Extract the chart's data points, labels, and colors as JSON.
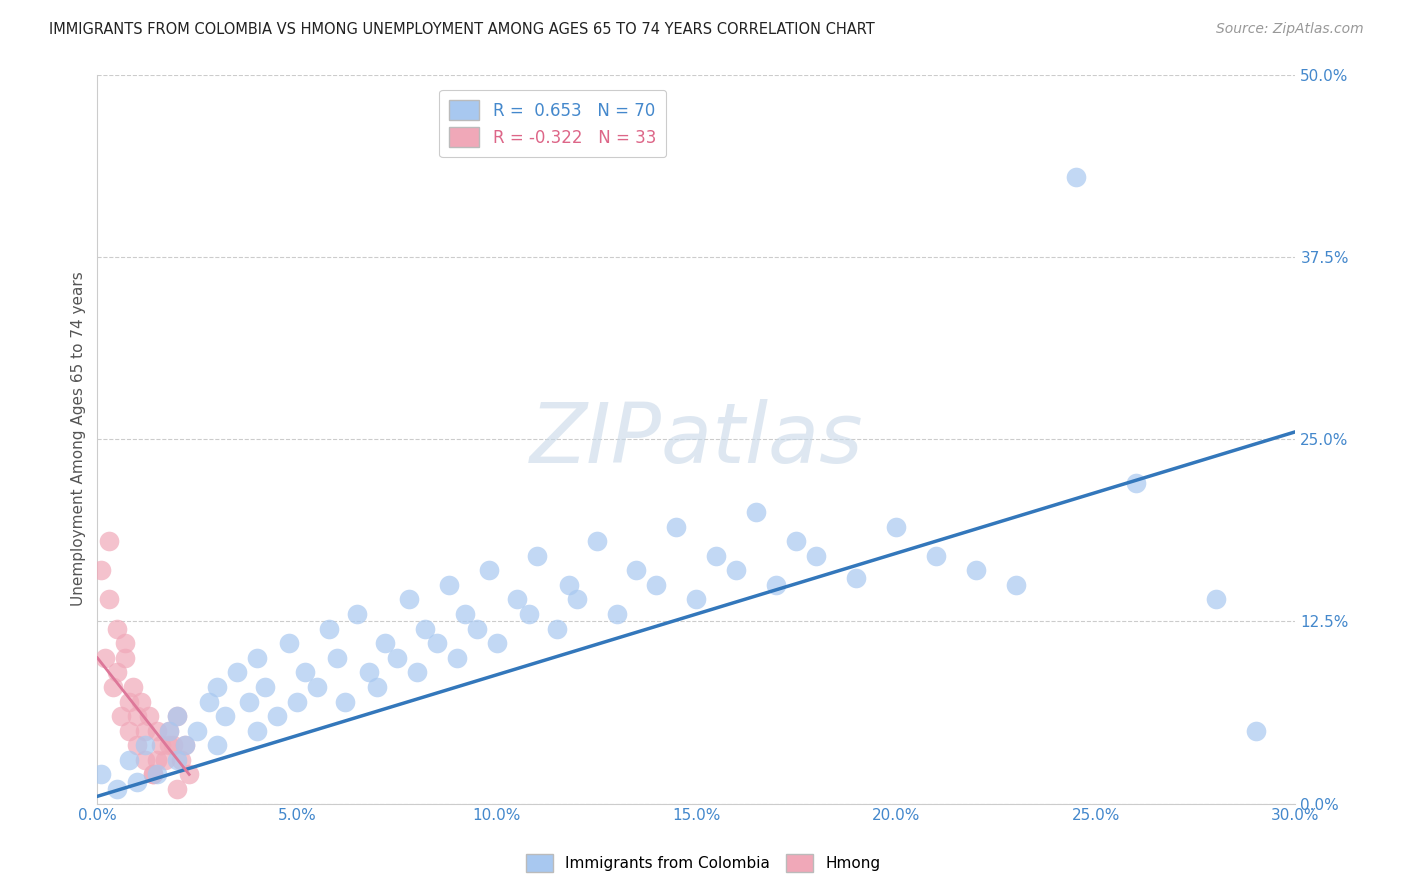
{
  "title": "IMMIGRANTS FROM COLOMBIA VS HMONG UNEMPLOYMENT AMONG AGES 65 TO 74 YEARS CORRELATION CHART",
  "source": "Source: ZipAtlas.com",
  "ylabel": "Unemployment Among Ages 65 to 74 years",
  "xlim": [
    0.0,
    0.3
  ],
  "ylim": [
    0.0,
    0.5
  ],
  "xticks": [
    0.0,
    0.05,
    0.1,
    0.15,
    0.2,
    0.25,
    0.3
  ],
  "yticks": [
    0.0,
    0.125,
    0.25,
    0.375,
    0.5
  ],
  "ytick_labels": [
    "0.0%",
    "12.5%",
    "25.0%",
    "37.5%",
    "50.0%"
  ],
  "xtick_labels": [
    "0.0%",
    "5.0%",
    "10.0%",
    "15.0%",
    "20.0%",
    "25.0%",
    "30.0%"
  ],
  "blue_R": 0.653,
  "blue_N": 70,
  "pink_R": -0.322,
  "pink_N": 33,
  "blue_color": "#a8c8f0",
  "pink_color": "#f0a8b8",
  "blue_line_color": "#3377bb",
  "pink_line_color": "#dd7799",
  "grid_color": "#cccccc",
  "background_color": "#ffffff",
  "watermark": "ZIPatlas",
  "watermark_color": "#c8d8e8",
  "legend_label_blue": "Immigrants from Colombia",
  "legend_label_pink": "Hmong",
  "blue_scatter_x": [
    0.001,
    0.005,
    0.008,
    0.01,
    0.012,
    0.015,
    0.018,
    0.02,
    0.02,
    0.022,
    0.025,
    0.028,
    0.03,
    0.03,
    0.032,
    0.035,
    0.038,
    0.04,
    0.04,
    0.042,
    0.045,
    0.048,
    0.05,
    0.052,
    0.055,
    0.058,
    0.06,
    0.062,
    0.065,
    0.068,
    0.07,
    0.072,
    0.075,
    0.078,
    0.08,
    0.082,
    0.085,
    0.088,
    0.09,
    0.092,
    0.095,
    0.098,
    0.1,
    0.105,
    0.108,
    0.11,
    0.115,
    0.118,
    0.12,
    0.125,
    0.13,
    0.135,
    0.14,
    0.145,
    0.15,
    0.155,
    0.16,
    0.165,
    0.17,
    0.175,
    0.18,
    0.19,
    0.2,
    0.21,
    0.22,
    0.23,
    0.245,
    0.26,
    0.28,
    0.29
  ],
  "blue_scatter_y": [
    0.02,
    0.01,
    0.03,
    0.015,
    0.04,
    0.02,
    0.05,
    0.03,
    0.06,
    0.04,
    0.05,
    0.07,
    0.04,
    0.08,
    0.06,
    0.09,
    0.07,
    0.05,
    0.1,
    0.08,
    0.06,
    0.11,
    0.07,
    0.09,
    0.08,
    0.12,
    0.1,
    0.07,
    0.13,
    0.09,
    0.08,
    0.11,
    0.1,
    0.14,
    0.09,
    0.12,
    0.11,
    0.15,
    0.1,
    0.13,
    0.12,
    0.16,
    0.11,
    0.14,
    0.13,
    0.17,
    0.12,
    0.15,
    0.14,
    0.18,
    0.13,
    0.16,
    0.15,
    0.19,
    0.14,
    0.17,
    0.16,
    0.2,
    0.15,
    0.18,
    0.17,
    0.155,
    0.19,
    0.17,
    0.16,
    0.15,
    0.43,
    0.22,
    0.14,
    0.05
  ],
  "pink_scatter_x": [
    0.001,
    0.002,
    0.003,
    0.004,
    0.005,
    0.006,
    0.007,
    0.008,
    0.009,
    0.01,
    0.011,
    0.012,
    0.013,
    0.014,
    0.015,
    0.016,
    0.017,
    0.018,
    0.019,
    0.02,
    0.021,
    0.022,
    0.023,
    0.005,
    0.008,
    0.012,
    0.015,
    0.018,
    0.003,
    0.007,
    0.01,
    0.014,
    0.02
  ],
  "pink_scatter_y": [
    0.16,
    0.1,
    0.14,
    0.08,
    0.12,
    0.06,
    0.1,
    0.05,
    0.08,
    0.04,
    0.07,
    0.03,
    0.06,
    0.02,
    0.05,
    0.04,
    0.03,
    0.05,
    0.04,
    0.06,
    0.03,
    0.04,
    0.02,
    0.09,
    0.07,
    0.05,
    0.03,
    0.04,
    0.18,
    0.11,
    0.06,
    0.02,
    0.01
  ],
  "blue_line_x": [
    0.0,
    0.3
  ],
  "blue_line_y": [
    0.005,
    0.255
  ],
  "pink_line_x": [
    0.0,
    0.023
  ],
  "pink_line_y": [
    0.1,
    0.02
  ]
}
